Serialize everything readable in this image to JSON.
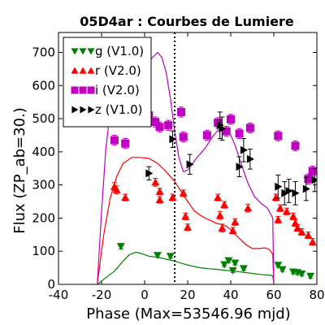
{
  "chart_data": {
    "type": "scatter",
    "title": "05D4ar : Courbes de Lumiere",
    "xlabel": "Phase (Max=53546.96 mjd)",
    "ylabel": "Flux (ZP_ab=30.)",
    "xlim": [
      -40,
      80
    ],
    "ylim": [
      0,
      760
    ],
    "xticks": [
      "-40",
      "-20",
      "0",
      "20",
      "40",
      "60",
      "80"
    ],
    "yticks": [
      "0",
      "100",
      "200",
      "300",
      "400",
      "500",
      "600",
      "700"
    ],
    "legend_placement": "top-left",
    "max_line_x": 14,
    "series": [
      {
        "name": "g (V1.0)",
        "color": "#008000",
        "marker": "triangle-down",
        "points": [
          {
            "x": -11,
            "y": 115,
            "err": 8
          },
          {
            "x": 6,
            "y": 88,
            "err": 6
          },
          {
            "x": 12,
            "y": 85,
            "err": 6
          },
          {
            "x": 37,
            "y": 60,
            "err": 6
          },
          {
            "x": 39,
            "y": 72,
            "err": 6
          },
          {
            "x": 41,
            "y": 42,
            "err": 6
          },
          {
            "x": 42,
            "y": 65,
            "err": 6
          },
          {
            "x": 46,
            "y": 48,
            "err": 6
          },
          {
            "x": 62,
            "y": 58,
            "err": 6
          },
          {
            "x": 64,
            "y": 45,
            "err": 6
          },
          {
            "x": 69,
            "y": 38,
            "err": 6
          },
          {
            "x": 71,
            "y": 36,
            "err": 6
          },
          {
            "x": 73,
            "y": 32,
            "err": 6
          },
          {
            "x": 77,
            "y": 25,
            "err": 6
          }
        ],
        "model": [
          [
            -22,
            0
          ],
          [
            -18,
            20
          ],
          [
            -14,
            40
          ],
          [
            -10,
            70
          ],
          [
            -7,
            90
          ],
          [
            -4,
            97
          ],
          [
            -1,
            92
          ],
          [
            2,
            85
          ],
          [
            6,
            82
          ],
          [
            10,
            76
          ],
          [
            14,
            70
          ],
          [
            18,
            62
          ],
          [
            22,
            55
          ],
          [
            26,
            50
          ],
          [
            30,
            47
          ],
          [
            34,
            45
          ],
          [
            38,
            42
          ],
          [
            42,
            40
          ],
          [
            46,
            36
          ],
          [
            50,
            33
          ],
          [
            54,
            30
          ],
          [
            58,
            28
          ],
          [
            59.5,
            26
          ],
          [
            60,
            4
          ]
        ]
      },
      {
        "name": "r (V2.0)",
        "color": "#ff0000",
        "marker": "triangle-up",
        "points": [
          {
            "x": -14,
            "y": 295,
            "err": 12
          },
          {
            "x": -13,
            "y": 285,
            "err": 12
          },
          {
            "x": -9,
            "y": 262,
            "err": 10
          },
          {
            "x": 5,
            "y": 308,
            "err": 12
          },
          {
            "x": 7,
            "y": 280,
            "err": 10
          },
          {
            "x": 7,
            "y": 255,
            "err": 10
          },
          {
            "x": 13,
            "y": 262,
            "err": 10
          },
          {
            "x": 18,
            "y": 275,
            "err": 10
          },
          {
            "x": 19,
            "y": 205,
            "err": 10
          },
          {
            "x": 20,
            "y": 172,
            "err": 10
          },
          {
            "x": 34,
            "y": 262,
            "err": 10
          },
          {
            "x": 35,
            "y": 208,
            "err": 12
          },
          {
            "x": 36,
            "y": 170,
            "err": 12
          },
          {
            "x": 37,
            "y": 240,
            "err": 10
          },
          {
            "x": 41,
            "y": 162,
            "err": 10
          },
          {
            "x": 42,
            "y": 188,
            "err": 10
          },
          {
            "x": 48,
            "y": 230,
            "err": 12
          },
          {
            "x": 61,
            "y": 262,
            "err": 10
          },
          {
            "x": 62,
            "y": 195,
            "err": 10
          },
          {
            "x": 63,
            "y": 230,
            "err": 10
          },
          {
            "x": 66,
            "y": 220,
            "err": 10
          },
          {
            "x": 69,
            "y": 205,
            "err": 10
          },
          {
            "x": 70,
            "y": 185,
            "err": 10
          },
          {
            "x": 71,
            "y": 170,
            "err": 10
          },
          {
            "x": 73,
            "y": 158,
            "err": 10
          },
          {
            "x": 76,
            "y": 148,
            "err": 10
          },
          {
            "x": 78,
            "y": 128,
            "err": 10
          }
        ],
        "model": [
          [
            -22,
            0
          ],
          [
            -19,
            150
          ],
          [
            -16,
            260
          ],
          [
            -13,
            325
          ],
          [
            -10,
            365
          ],
          [
            -6,
            383
          ],
          [
            -2,
            383
          ],
          [
            2,
            380
          ],
          [
            6,
            365
          ],
          [
            10,
            340
          ],
          [
            14,
            310
          ],
          [
            17,
            280
          ],
          [
            20,
            250
          ],
          [
            23,
            222
          ],
          [
            26,
            208
          ],
          [
            28,
            200
          ],
          [
            31,
            192
          ],
          [
            33,
            185
          ],
          [
            36,
            180
          ],
          [
            38,
            175
          ],
          [
            40,
            165
          ],
          [
            43,
            145
          ],
          [
            47,
            120
          ],
          [
            50,
            108
          ],
          [
            53,
            108
          ],
          [
            56,
            110
          ],
          [
            58,
            105
          ],
          [
            59.5,
            90
          ],
          [
            60,
            4
          ]
        ]
      },
      {
        "name": "i (V2.0)",
        "color": "#c000c0",
        "marker": "square",
        "points": [
          {
            "x": -14,
            "y": 435,
            "err": 15
          },
          {
            "x": -9,
            "y": 425,
            "err": 15
          },
          {
            "x": 2,
            "y": 510,
            "err": 15
          },
          {
            "x": 5,
            "y": 490,
            "err": 15
          },
          {
            "x": 7,
            "y": 475,
            "err": 15
          },
          {
            "x": 11,
            "y": 480,
            "err": 15
          },
          {
            "x": 17,
            "y": 520,
            "err": 15
          },
          {
            "x": 18,
            "y": 445,
            "err": 15
          },
          {
            "x": 29,
            "y": 450,
            "err": 15
          },
          {
            "x": 34,
            "y": 488,
            "err": 15
          },
          {
            "x": 38,
            "y": 462,
            "err": 15
          },
          {
            "x": 40,
            "y": 498,
            "err": 15
          },
          {
            "x": 44,
            "y": 455,
            "err": 15
          },
          {
            "x": 49,
            "y": 472,
            "err": 15
          },
          {
            "x": 62,
            "y": 448,
            "err": 15
          },
          {
            "x": 70,
            "y": 418,
            "err": 15
          },
          {
            "x": 76,
            "y": 318,
            "err": 15
          },
          {
            "x": 78,
            "y": 342,
            "err": 15
          }
        ],
        "model": [
          [
            -22,
            0
          ],
          [
            -20,
            220
          ],
          [
            -18,
            410
          ],
          [
            -16,
            520
          ],
          [
            -14,
            550
          ],
          [
            -12,
            555
          ],
          [
            -8,
            580
          ],
          [
            -4,
            620
          ],
          [
            0,
            650
          ],
          [
            3,
            680
          ],
          [
            6,
            700
          ],
          [
            8,
            685
          ],
          [
            10,
            640
          ],
          [
            12,
            560
          ],
          [
            14,
            460
          ],
          [
            16,
            380
          ],
          [
            18,
            340
          ],
          [
            20,
            345
          ],
          [
            24,
            380
          ],
          [
            28,
            410
          ],
          [
            31,
            440
          ],
          [
            34,
            465
          ],
          [
            37,
            470
          ],
          [
            40,
            450
          ],
          [
            42,
            420
          ],
          [
            45,
            360
          ],
          [
            48,
            305
          ],
          [
            51,
            265
          ],
          [
            54,
            245
          ],
          [
            57,
            230
          ],
          [
            59.5,
            200
          ],
          [
            60,
            4
          ]
        ]
      },
      {
        "name": "z (V1.0)",
        "color": "#000000",
        "marker": "triangle-right",
        "points": [
          {
            "x": 2,
            "y": 335,
            "err": 20
          },
          {
            "x": 13,
            "y": 438,
            "err": 25
          },
          {
            "x": 21,
            "y": 362,
            "err": 30
          },
          {
            "x": 35,
            "y": 480,
            "err": 40
          },
          {
            "x": 36,
            "y": 470,
            "err": 35
          },
          {
            "x": 44,
            "y": 355,
            "err": 30
          },
          {
            "x": 46,
            "y": 405,
            "err": 35
          },
          {
            "x": 49,
            "y": 378,
            "err": 30
          },
          {
            "x": 62,
            "y": 295,
            "err": 35
          },
          {
            "x": 65,
            "y": 275,
            "err": 35
          },
          {
            "x": 67,
            "y": 282,
            "err": 35
          },
          {
            "x": 70,
            "y": 275,
            "err": 35
          },
          {
            "x": 75,
            "y": 288,
            "err": 35
          },
          {
            "x": 79,
            "y": 315,
            "err": 35
          }
        ],
        "model": []
      }
    ]
  }
}
